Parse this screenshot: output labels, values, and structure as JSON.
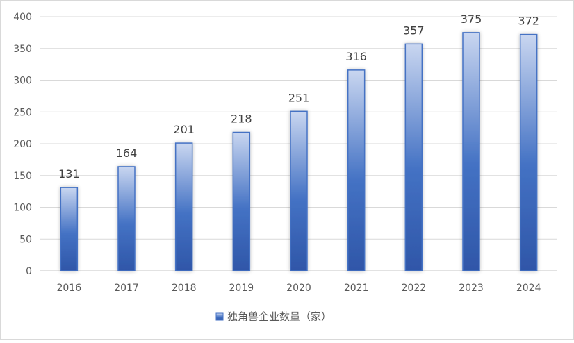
{
  "chart_data": {
    "type": "bar",
    "categories": [
      "2016",
      "2017",
      "2018",
      "2019",
      "2020",
      "2021",
      "2022",
      "2023",
      "2024"
    ],
    "series": [
      {
        "name": "独角兽企业数量（家）",
        "values": [
          131,
          164,
          201,
          218,
          251,
          316,
          357,
          375,
          372
        ]
      }
    ],
    "ylim": [
      0,
      400
    ],
    "yticks": [
      0,
      50,
      100,
      150,
      200,
      250,
      300,
      350,
      400
    ],
    "grid": true,
    "legend": "bottom",
    "colors": {
      "bar_top": "#c9d6f0",
      "bar_mid": "#4472c4",
      "bar_bottom": "#2f56a8",
      "bar_border": "#4472c4",
      "grid": "#d9d9d9",
      "text": "#595959"
    }
  }
}
